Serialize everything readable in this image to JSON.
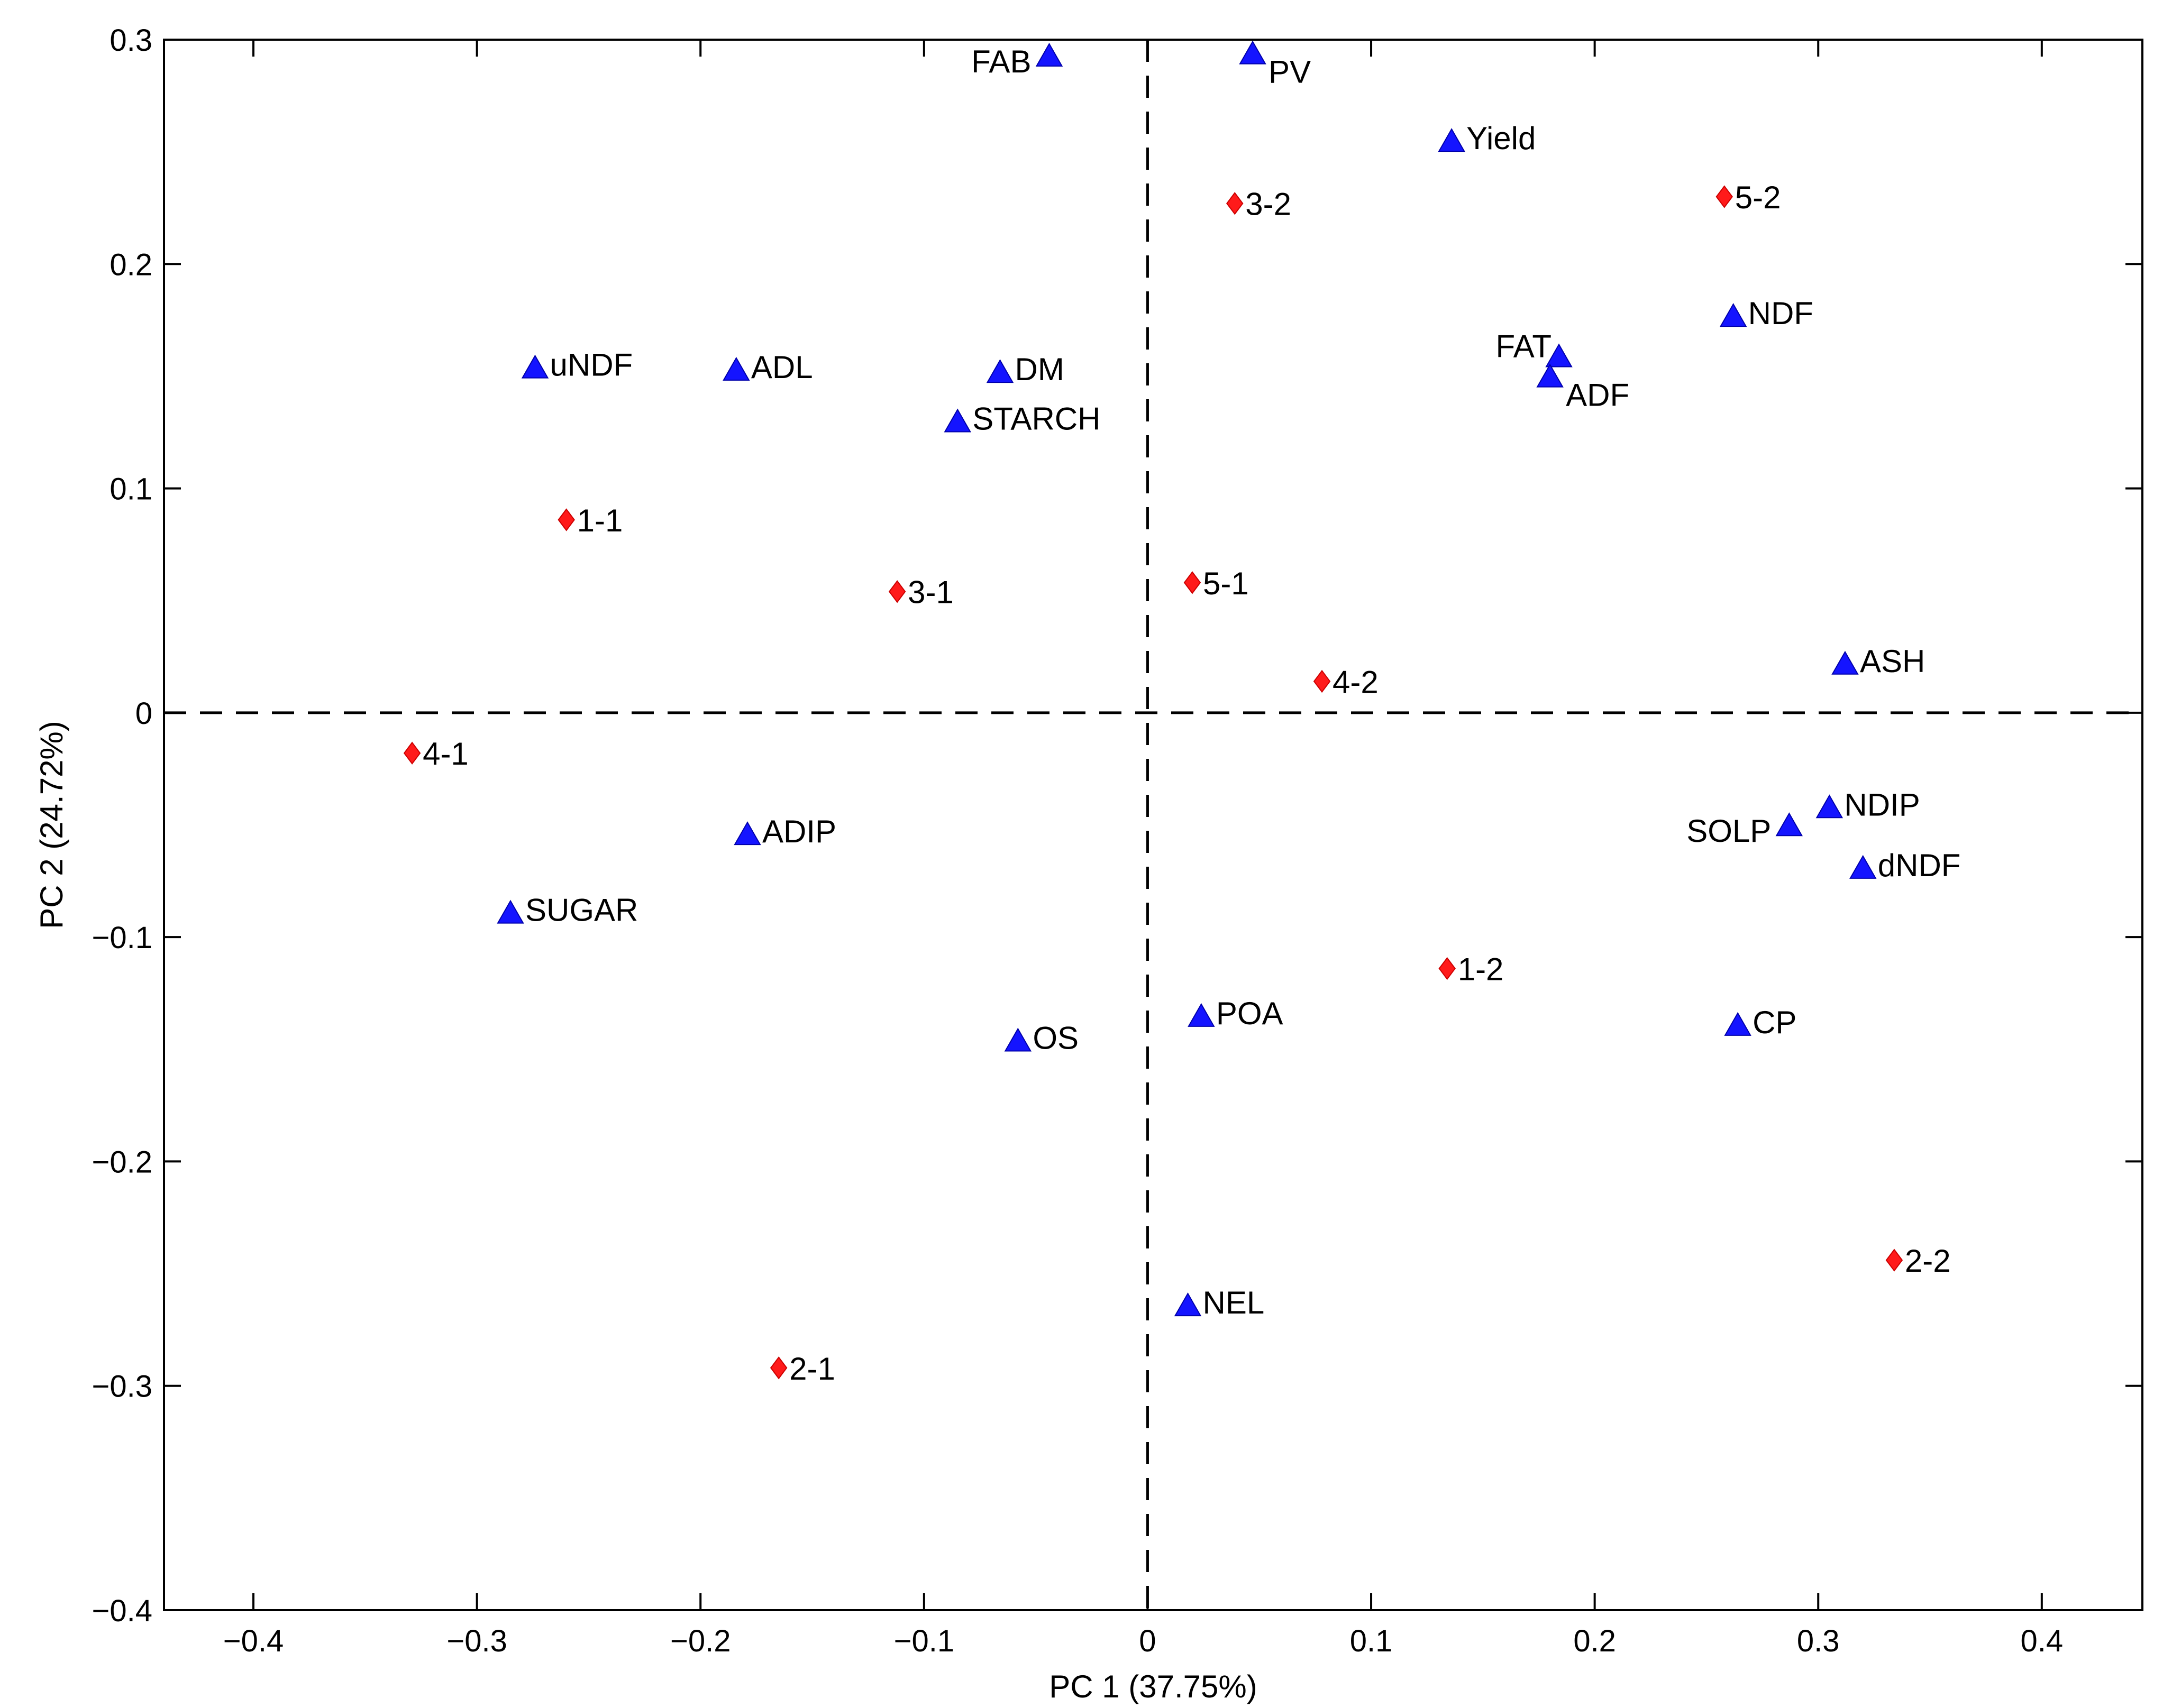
{
  "chart_data": {
    "type": "scatter",
    "title": "",
    "xlabel": "PC 1 (37.75%)",
    "ylabel": "PC 2 (24.72%)",
    "xlim": [
      -0.44,
      0.445
    ],
    "ylim": [
      -0.4,
      0.3
    ],
    "xticks": [
      -0.4,
      -0.3,
      -0.2,
      -0.1,
      0,
      0.1,
      0.2,
      0.3,
      0.4
    ],
    "xtick_labels": [
      "−0.4",
      "−0.3",
      "−0.2",
      "−0.1",
      "0",
      "0.1",
      "0.2",
      "0.3",
      "0.4"
    ],
    "yticks": [
      0.3,
      0.2,
      0.1,
      0,
      -0.1,
      -0.2,
      -0.3,
      -0.4
    ],
    "ytick_labels": [
      "0.3",
      "0.2",
      "0.1",
      "0",
      "−0.1",
      "−0.2",
      "−0.3",
      "−0.4"
    ],
    "reference_lines": {
      "x": 0,
      "y": 0,
      "style": "dashed"
    },
    "colors": {
      "variables": "#1414ff",
      "samples": "#ff1a1a"
    },
    "series": [
      {
        "name": "variables",
        "marker": "triangle",
        "points": [
          {
            "label": "FAB",
            "x": -0.044,
            "y": 0.292,
            "anchor": "left"
          },
          {
            "label": "PV",
            "x": 0.047,
            "y": 0.293,
            "anchor": "right-below"
          },
          {
            "label": "Yield",
            "x": 0.136,
            "y": 0.254,
            "anchor": "right"
          },
          {
            "label": "NDF",
            "x": 0.262,
            "y": 0.176,
            "anchor": "right"
          },
          {
            "label": "FAT",
            "x": 0.184,
            "y": 0.158,
            "anchor": "left-above"
          },
          {
            "label": "ADF",
            "x": 0.18,
            "y": 0.149,
            "anchor": "right-below"
          },
          {
            "label": "uNDF",
            "x": -0.274,
            "y": 0.153,
            "anchor": "right"
          },
          {
            "label": "ADL",
            "x": -0.184,
            "y": 0.152,
            "anchor": "right"
          },
          {
            "label": "DM",
            "x": -0.066,
            "y": 0.151,
            "anchor": "right"
          },
          {
            "label": "STARCH",
            "x": -0.085,
            "y": 0.129,
            "anchor": "right"
          },
          {
            "label": "ASH",
            "x": 0.312,
            "y": 0.021,
            "anchor": "right"
          },
          {
            "label": "NDIP",
            "x": 0.305,
            "y": -0.043,
            "anchor": "right"
          },
          {
            "label": "SOLP",
            "x": 0.287,
            "y": -0.051,
            "anchor": "left"
          },
          {
            "label": "dNDF",
            "x": 0.32,
            "y": -0.07,
            "anchor": "right"
          },
          {
            "label": "ADIP",
            "x": -0.179,
            "y": -0.055,
            "anchor": "right"
          },
          {
            "label": "SUGAR",
            "x": -0.285,
            "y": -0.09,
            "anchor": "right"
          },
          {
            "label": "POA",
            "x": 0.024,
            "y": -0.136,
            "anchor": "right"
          },
          {
            "label": "OS",
            "x": -0.058,
            "y": -0.147,
            "anchor": "right"
          },
          {
            "label": "CP",
            "x": 0.264,
            "y": -0.14,
            "anchor": "right"
          },
          {
            "label": "NEL",
            "x": 0.018,
            "y": -0.265,
            "anchor": "right"
          }
        ]
      },
      {
        "name": "samples",
        "marker": "diamond",
        "points": [
          {
            "label": "3-2",
            "x": 0.039,
            "y": 0.227,
            "anchor": "right"
          },
          {
            "label": "5-2",
            "x": 0.258,
            "y": 0.23,
            "anchor": "right"
          },
          {
            "label": "1-1",
            "x": -0.26,
            "y": 0.086,
            "anchor": "right"
          },
          {
            "label": "3-1",
            "x": -0.112,
            "y": 0.054,
            "anchor": "right"
          },
          {
            "label": "5-1",
            "x": 0.02,
            "y": 0.058,
            "anchor": "right"
          },
          {
            "label": "4-2",
            "x": 0.078,
            "y": 0.014,
            "anchor": "right"
          },
          {
            "label": "4-1",
            "x": -0.329,
            "y": -0.018,
            "anchor": "right"
          },
          {
            "label": "1-2",
            "x": 0.134,
            "y": -0.114,
            "anchor": "right"
          },
          {
            "label": "2-2",
            "x": 0.334,
            "y": -0.244,
            "anchor": "right"
          },
          {
            "label": "2-1",
            "x": -0.165,
            "y": -0.292,
            "anchor": "right"
          }
        ]
      }
    ]
  }
}
